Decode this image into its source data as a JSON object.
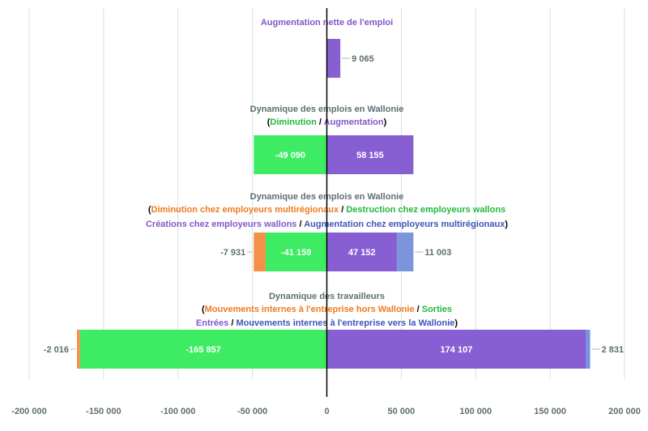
{
  "chart_data": {
    "type": "bar",
    "orientation": "horizontal",
    "stacked": true,
    "xlim": [
      -200000,
      200000
    ],
    "x_ticks": [
      -200000,
      -150000,
      -100000,
      -50000,
      0,
      50000,
      100000,
      150000,
      200000
    ],
    "x_tick_labels": [
      "-200 000",
      "-150 000",
      "-100 000",
      "-50 000",
      "0",
      "50 000",
      "100 000",
      "150 000",
      "200 000"
    ],
    "grid": true,
    "colors": {
      "orange": "#f58f4a",
      "green": "#3dec62",
      "purple": "#885fd3",
      "blue": "#7b95dd",
      "title_gray": "#5f6e73",
      "black": "#000000",
      "label_orange": "#f07a1e",
      "label_green": "#22b83c",
      "label_purple": "#8257c9",
      "label_blue": "#3f55b8"
    },
    "groups": [
      {
        "title_lines": [
          [
            {
              "text": "Augmentation nette de l'emploi",
              "color": "label_purple"
            }
          ]
        ],
        "segments": [
          {
            "start": 0,
            "value": 9065,
            "color": "purple",
            "label": "9 065",
            "label_pos": "outside-right"
          }
        ]
      },
      {
        "title_lines": [
          [
            {
              "text": "Dynamique des emplois en Wallonie",
              "color": "title_gray"
            }
          ],
          [
            {
              "text": "(",
              "color": "black"
            },
            {
              "text": "Diminution",
              "color": "label_green"
            },
            {
              "text": " / ",
              "color": "black"
            },
            {
              "text": "Augmentation",
              "color": "label_purple"
            },
            {
              "text": ")",
              "color": "black"
            }
          ]
        ],
        "segments": [
          {
            "start": 0,
            "value": -49090,
            "color": "green",
            "label": "-49 090",
            "label_pos": "inside"
          },
          {
            "start": 0,
            "value": 58155,
            "color": "purple",
            "label": "58 155",
            "label_pos": "inside"
          }
        ]
      },
      {
        "title_lines": [
          [
            {
              "text": "Dynamique des emplois en Wallonie",
              "color": "title_gray"
            }
          ],
          [
            {
              "text": "(",
              "color": "black"
            },
            {
              "text": "Diminution chez employeurs multirégionaux",
              "color": "label_orange"
            },
            {
              "text": " / ",
              "color": "black"
            },
            {
              "text": "Destruction chez employeurs wallons",
              "color": "label_green"
            }
          ],
          [
            {
              "text": "Créations chez employeurs wallons",
              "color": "label_purple"
            },
            {
              "text": " / ",
              "color": "black"
            },
            {
              "text": "Augmentation chez employeurs multirégionaux",
              "color": "label_blue"
            },
            {
              "text": ")",
              "color": "black"
            }
          ]
        ],
        "segments": [
          {
            "start": 0,
            "value": -41159,
            "color": "green",
            "label": "-41 159",
            "label_pos": "inside"
          },
          {
            "start": -41159,
            "value": -7931,
            "color": "orange",
            "label": "-7 931",
            "label_pos": "outside-left"
          },
          {
            "start": 0,
            "value": 47152,
            "color": "purple",
            "label": "47 152",
            "label_pos": "inside"
          },
          {
            "start": 47152,
            "value": 11003,
            "color": "blue",
            "label": "11 003",
            "label_pos": "outside-right"
          }
        ]
      },
      {
        "title_lines": [
          [
            {
              "text": "Dynamique des travailleurs",
              "color": "title_gray"
            }
          ],
          [
            {
              "text": "(",
              "color": "black"
            },
            {
              "text": "Mouvements internes à l'entreprise hors Wallonie",
              "color": "label_orange"
            },
            {
              "text": " / ",
              "color": "black"
            },
            {
              "text": "Sorties",
              "color": "label_green"
            }
          ],
          [
            {
              "text": "Entrées",
              "color": "label_purple"
            },
            {
              "text": " / ",
              "color": "black"
            },
            {
              "text": "Mouvements internes à l'entreprise vers la Wallonie",
              "color": "label_blue"
            },
            {
              "text": ")",
              "color": "black"
            }
          ]
        ],
        "segments": [
          {
            "start": 0,
            "value": -165857,
            "color": "green",
            "label": "-165 857",
            "label_pos": "inside"
          },
          {
            "start": -165857,
            "value": -2016,
            "color": "orange",
            "label": "-2 016",
            "label_pos": "outside-left"
          },
          {
            "start": 0,
            "value": 174107,
            "color": "purple",
            "label": "174 107",
            "label_pos": "inside"
          },
          {
            "start": 174107,
            "value": 2831,
            "color": "blue",
            "label": "2 831",
            "label_pos": "outside-right"
          }
        ]
      }
    ]
  }
}
